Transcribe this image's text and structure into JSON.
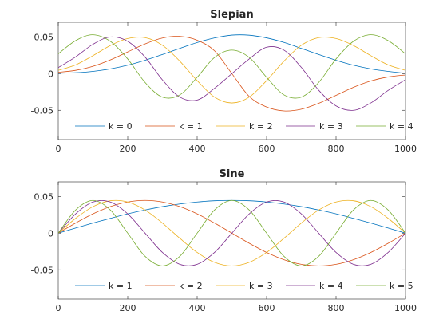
{
  "chart_data": [
    {
      "type": "line",
      "title": "Slepian",
      "xlabel": "",
      "ylabel": "",
      "xlim": [
        0,
        1000
      ],
      "ylim": [
        -0.09,
        0.07
      ],
      "xticks": [
        0,
        200,
        400,
        600,
        800,
        1000
      ],
      "xticklabels": [
        "0",
        "200",
        "400",
        "600",
        "800",
        "1000"
      ],
      "yticks": [
        0.05,
        0,
        -0.05
      ],
      "yticklabels": [
        "0.05",
        "0",
        "-0.05"
      ],
      "grid": false,
      "legend": "bottom, horizontal",
      "series": [
        {
          "name": "k = 0",
          "color": "#0072BD",
          "x": [
            0,
            50,
            100,
            150,
            200,
            250,
            300,
            350,
            400,
            450,
            500,
            550,
            600,
            650,
            700,
            750,
            800,
            850,
            900,
            950,
            1000
          ],
          "y": [
            0.0005,
            0.0012,
            0.0031,
            0.0065,
            0.0115,
            0.0182,
            0.0261,
            0.0344,
            0.0424,
            0.0486,
            0.0525,
            0.0524,
            0.0487,
            0.0425,
            0.0344,
            0.0261,
            0.0182,
            0.0115,
            0.0065,
            0.0031,
            0.0005
          ]
        },
        {
          "name": "k = 1",
          "color": "#D95319",
          "x": [
            0,
            50,
            100,
            150,
            200,
            250,
            300,
            350,
            400,
            450,
            500,
            550,
            600,
            650,
            700,
            750,
            800,
            850,
            900,
            950,
            1000
          ],
          "y": [
            0.0018,
            0.0045,
            0.01,
            0.0187,
            0.0296,
            0.0405,
            0.0485,
            0.0508,
            0.0455,
            0.0311,
            0.0,
            -0.0311,
            -0.0455,
            -0.0508,
            -0.0485,
            -0.0405,
            -0.0296,
            -0.0187,
            -0.01,
            -0.0045,
            -0.0018
          ]
        },
        {
          "name": "k = 2",
          "color": "#EDB120",
          "x": [
            0,
            50,
            100,
            150,
            200,
            250,
            300,
            350,
            400,
            450,
            500,
            550,
            600,
            650,
            700,
            750,
            800,
            850,
            900,
            950,
            1000
          ],
          "y": [
            0.0045,
            0.0119,
            0.0245,
            0.0383,
            0.0478,
            0.049,
            0.0386,
            0.017,
            -0.0095,
            -0.032,
            -0.04,
            -0.032,
            -0.0095,
            0.017,
            0.0386,
            0.049,
            0.0478,
            0.0383,
            0.0245,
            0.0119,
            0.0045
          ]
        },
        {
          "name": "k = 3",
          "color": "#7E2F8E",
          "x": [
            0,
            50,
            100,
            150,
            200,
            250,
            300,
            350,
            400,
            450,
            500,
            550,
            600,
            650,
            700,
            750,
            800,
            850,
            900,
            950,
            1000
          ],
          "y": [
            0.0082,
            0.0229,
            0.04,
            0.05,
            0.044,
            0.0226,
            -0.0085,
            -0.032,
            -0.036,
            -0.02,
            0.0,
            0.02,
            0.036,
            0.032,
            0.0085,
            -0.0226,
            -0.044,
            -0.05,
            -0.04,
            -0.0229,
            -0.0082
          ]
        },
        {
          "name": "k = 4",
          "color": "#77AC30",
          "x": [
            0,
            50,
            100,
            150,
            200,
            250,
            300,
            350,
            400,
            450,
            500,
            550,
            600,
            650,
            700,
            750,
            800,
            850,
            900,
            950,
            1000
          ],
          "y": [
            0.027,
            0.045,
            0.053,
            0.044,
            0.02,
            -0.012,
            -0.032,
            -0.029,
            -0.005,
            0.022,
            0.032,
            0.022,
            -0.005,
            -0.029,
            -0.032,
            -0.012,
            0.02,
            0.044,
            0.053,
            0.045,
            0.027
          ]
        }
      ]
    },
    {
      "type": "line",
      "title": "Sine",
      "xlabel": "",
      "ylabel": "",
      "xlim": [
        0,
        1000
      ],
      "ylim": [
        -0.09,
        0.07
      ],
      "xticks": [
        0,
        200,
        400,
        600,
        800,
        1000
      ],
      "xticklabels": [
        "0",
        "200",
        "400",
        "600",
        "800",
        "1000"
      ],
      "yticks": [
        0.05,
        0,
        -0.05
      ],
      "yticklabels": [
        "0.05",
        "0",
        "-0.05"
      ],
      "grid": false,
      "legend": "bottom, horizontal",
      "series": [
        {
          "name": "k = 1",
          "color": "#0072BD",
          "x": [
            0,
            50,
            100,
            150,
            200,
            250,
            300,
            350,
            400,
            450,
            500,
            550,
            600,
            650,
            700,
            750,
            800,
            850,
            900,
            950,
            1000
          ],
          "y": [
            0.0,
            0.007,
            0.0138,
            0.0202,
            0.0263,
            0.0316,
            0.0362,
            0.0398,
            0.0425,
            0.0442,
            0.0447,
            0.0442,
            0.0425,
            0.0398,
            0.0362,
            0.0316,
            0.0263,
            0.0202,
            0.0138,
            0.007,
            0.0
          ]
        },
        {
          "name": "k = 2",
          "color": "#D95319",
          "x": [
            0,
            50,
            100,
            150,
            200,
            250,
            300,
            350,
            400,
            450,
            500,
            550,
            600,
            650,
            700,
            750,
            800,
            850,
            900,
            950,
            1000
          ],
          "y": [
            0.0,
            0.0138,
            0.0263,
            0.0362,
            0.0425,
            0.0447,
            0.0425,
            0.0362,
            0.0263,
            0.0138,
            0.0,
            -0.0138,
            -0.0263,
            -0.0362,
            -0.0425,
            -0.0447,
            -0.0425,
            -0.0362,
            -0.0263,
            -0.0138,
            0.0
          ]
        },
        {
          "name": "k = 3",
          "color": "#EDB120",
          "x": [
            0,
            50,
            100,
            150,
            200,
            250,
            300,
            350,
            400,
            450,
            500,
            550,
            600,
            650,
            700,
            750,
            800,
            850,
            900,
            950,
            1000
          ],
          "y": [
            0.0,
            0.0202,
            0.0362,
            0.0442,
            0.0425,
            0.0316,
            0.0138,
            -0.007,
            -0.0263,
            -0.0398,
            -0.0447,
            -0.0398,
            -0.0263,
            -0.007,
            0.0138,
            0.0316,
            0.0425,
            0.0442,
            0.0362,
            0.0202,
            0.0
          ]
        },
        {
          "name": "k = 4",
          "color": "#7E2F8E",
          "x": [
            0,
            50,
            100,
            150,
            200,
            250,
            300,
            350,
            400,
            450,
            500,
            550,
            600,
            650,
            700,
            750,
            800,
            850,
            900,
            950,
            1000
          ],
          "y": [
            0.0,
            0.0263,
            0.0425,
            0.0425,
            0.0263,
            0.0,
            -0.0263,
            -0.0425,
            -0.0425,
            -0.0263,
            0.0,
            0.0263,
            0.0425,
            0.0425,
            0.0263,
            0.0,
            -0.0263,
            -0.0425,
            -0.0425,
            -0.0263,
            0.0
          ]
        },
        {
          "name": "k = 5",
          "color": "#77AC30",
          "x": [
            0,
            50,
            100,
            150,
            200,
            250,
            300,
            350,
            400,
            450,
            500,
            550,
            600,
            650,
            700,
            750,
            800,
            850,
            900,
            950,
            1000
          ],
          "y": [
            0.0,
            0.0316,
            0.0447,
            0.0316,
            0.0,
            -0.0316,
            -0.0447,
            -0.0316,
            0.0,
            0.0316,
            0.0447,
            0.0316,
            0.0,
            -0.0316,
            -0.0447,
            -0.0316,
            0.0,
            0.0316,
            0.0447,
            0.0316,
            0.0
          ]
        }
      ]
    }
  ]
}
